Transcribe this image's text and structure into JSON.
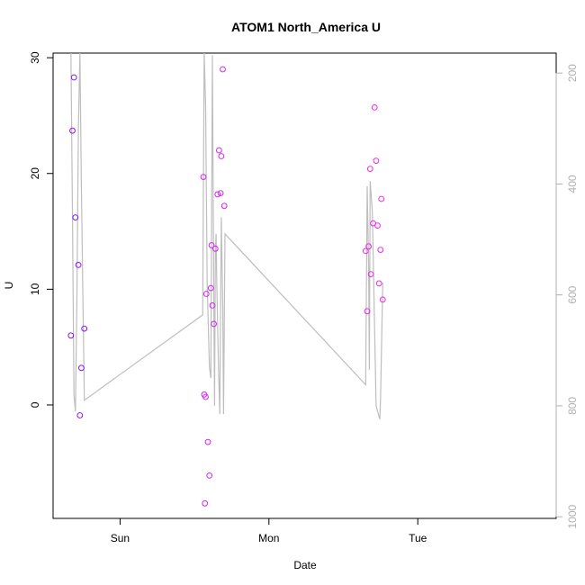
{
  "chart_data": {
    "type": "scatter",
    "title": "ATOM1 North_America U",
    "xlabel": "Date",
    "ylabel": "U",
    "x_ticks": [
      {
        "value": 1.0,
        "label": "Sun"
      },
      {
        "value": 2.0,
        "label": "Mon"
      },
      {
        "value": 3.0,
        "label": "Tue"
      }
    ],
    "xlim": [
      0.55,
      3.93
    ],
    "ylim": [
      -9.8,
      30.4
    ],
    "y_ticks": [
      0,
      10,
      20,
      30
    ],
    "y2_ticks": [
      200,
      400,
      600,
      800,
      1000
    ],
    "y2lim": [
      1003,
      164
    ],
    "grid": false,
    "colors": {
      "line": "#bebebe",
      "points_early": "#7f00ff",
      "points_late": "#ff00ff",
      "right_axis": "#b0b0b0"
    },
    "points": [
      {
        "x": 0.67,
        "y": 6.0,
        "color": "#8a12f5"
      },
      {
        "x": 0.68,
        "y": 23.7,
        "color": "#8a12f5"
      },
      {
        "x": 0.69,
        "y": 28.3,
        "color": "#8a12f5"
      },
      {
        "x": 0.7,
        "y": 16.2,
        "color": "#8a12f5"
      },
      {
        "x": 0.72,
        "y": 12.1,
        "color": "#8a12f5"
      },
      {
        "x": 0.73,
        "y": -0.9,
        "color": "#8a12f5"
      },
      {
        "x": 0.74,
        "y": 3.2,
        "color": "#8a12f5"
      },
      {
        "x": 0.76,
        "y": 6.6,
        "color": "#8a12f5"
      },
      {
        "x": 1.56,
        "y": 19.7,
        "color": "#d622f2"
      },
      {
        "x": 1.565,
        "y": 0.9,
        "color": "#d622f2"
      },
      {
        "x": 1.57,
        "y": -8.5,
        "color": "#d622f2"
      },
      {
        "x": 1.575,
        "y": 0.7,
        "color": "#d622f2"
      },
      {
        "x": 1.58,
        "y": 9.6,
        "color": "#d622f2"
      },
      {
        "x": 1.59,
        "y": -3.2,
        "color": "#d622f2"
      },
      {
        "x": 1.6,
        "y": -6.1,
        "color": "#d622f2"
      },
      {
        "x": 1.61,
        "y": 10.1,
        "color": "#d622f2"
      },
      {
        "x": 1.615,
        "y": 13.8,
        "color": "#d622f2"
      },
      {
        "x": 1.62,
        "y": 8.6,
        "color": "#d622f2"
      },
      {
        "x": 1.63,
        "y": 7.0,
        "color": "#d622f2"
      },
      {
        "x": 1.64,
        "y": 13.5,
        "color": "#d622f2"
      },
      {
        "x": 1.655,
        "y": 18.2,
        "color": "#d622f2"
      },
      {
        "x": 1.665,
        "y": 22.0,
        "color": "#d622f2"
      },
      {
        "x": 1.675,
        "y": 18.3,
        "color": "#d622f2"
      },
      {
        "x": 1.68,
        "y": 21.5,
        "color": "#d622f2"
      },
      {
        "x": 1.69,
        "y": 29.0,
        "color": "#d622f2"
      },
      {
        "x": 1.7,
        "y": 17.2,
        "color": "#d622f2"
      },
      {
        "x": 2.65,
        "y": 13.3,
        "color": "#f026ee"
      },
      {
        "x": 2.66,
        "y": 8.1,
        "color": "#f026ee"
      },
      {
        "x": 2.67,
        "y": 13.7,
        "color": "#f026ee"
      },
      {
        "x": 2.68,
        "y": 20.4,
        "color": "#f026ee"
      },
      {
        "x": 2.685,
        "y": 11.3,
        "color": "#f026ee"
      },
      {
        "x": 2.7,
        "y": 15.7,
        "color": "#f026ee"
      },
      {
        "x": 2.71,
        "y": 25.7,
        "color": "#f026ee"
      },
      {
        "x": 2.72,
        "y": 21.1,
        "color": "#f026ee"
      },
      {
        "x": 2.73,
        "y": 15.5,
        "color": "#f026ee"
      },
      {
        "x": 2.74,
        "y": 10.5,
        "color": "#f026ee"
      },
      {
        "x": 2.75,
        "y": 13.4,
        "color": "#f026ee"
      },
      {
        "x": 2.755,
        "y": 17.8,
        "color": "#f026ee"
      },
      {
        "x": 2.765,
        "y": 9.1,
        "color": "#f026ee"
      }
    ],
    "line_series": [
      {
        "x": 0.67,
        "y2": 164
      },
      {
        "x": 0.68,
        "y2": 450
      },
      {
        "x": 0.69,
        "y2": 780
      },
      {
        "x": 0.7,
        "y2": 810
      },
      {
        "x": 0.71,
        "y2": 600
      },
      {
        "x": 0.72,
        "y2": 300
      },
      {
        "x": 0.73,
        "y2": 164
      },
      {
        "x": 0.74,
        "y2": 400
      },
      {
        "x": 0.76,
        "y2": 790
      },
      {
        "x": 1.555,
        "y2": 636
      },
      {
        "x": 1.565,
        "y2": 164
      },
      {
        "x": 1.575,
        "y2": 260
      },
      {
        "x": 1.585,
        "y2": 580
      },
      {
        "x": 1.6,
        "y2": 730
      },
      {
        "x": 1.61,
        "y2": 750
      },
      {
        "x": 1.62,
        "y2": 168
      },
      {
        "x": 1.63,
        "y2": 620
      },
      {
        "x": 1.635,
        "y2": 800
      },
      {
        "x": 1.64,
        "y2": 520
      },
      {
        "x": 1.645,
        "y2": 490
      },
      {
        "x": 1.65,
        "y2": 580
      },
      {
        "x": 1.66,
        "y2": 720
      },
      {
        "x": 1.67,
        "y2": 815
      },
      {
        "x": 1.68,
        "y2": 460
      },
      {
        "x": 1.69,
        "y2": 620
      },
      {
        "x": 1.695,
        "y2": 815
      },
      {
        "x": 1.705,
        "y2": 490
      },
      {
        "x": 2.65,
        "y2": 762
      },
      {
        "x": 2.66,
        "y2": 404
      },
      {
        "x": 2.67,
        "y2": 550
      },
      {
        "x": 2.675,
        "y2": 735
      },
      {
        "x": 2.68,
        "y2": 395
      },
      {
        "x": 2.695,
        "y2": 450
      },
      {
        "x": 2.72,
        "y2": 800
      },
      {
        "x": 2.74,
        "y2": 820
      },
      {
        "x": 2.745,
        "y2": 824
      },
      {
        "x": 2.75,
        "y2": 790
      },
      {
        "x": 2.765,
        "y2": 578
      }
    ]
  }
}
